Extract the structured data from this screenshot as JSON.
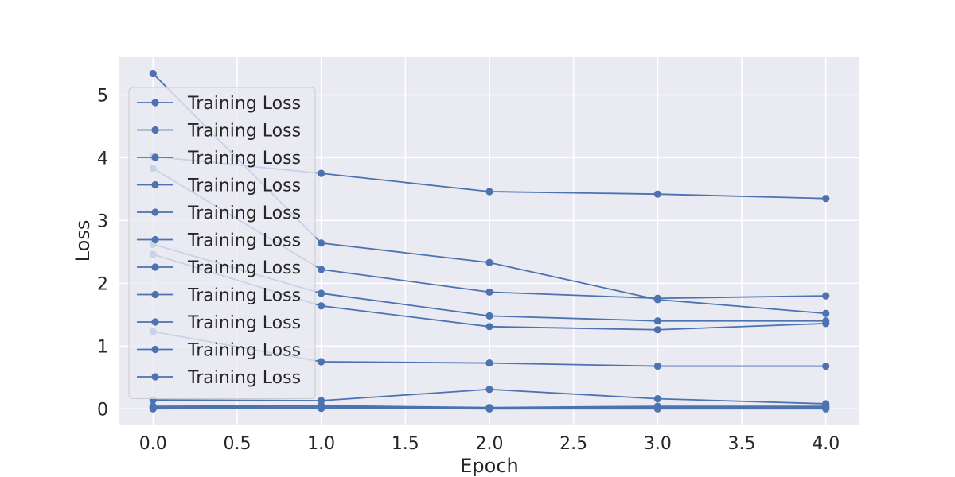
{
  "chart_data": {
    "type": "line",
    "title": "",
    "xlabel": "Epoch",
    "ylabel": "Loss",
    "xlim": [
      -0.2,
      4.2
    ],
    "ylim": [
      -0.25,
      5.6
    ],
    "xticks": [
      "0.0",
      "0.5",
      "1.0",
      "1.5",
      "2.0",
      "2.5",
      "3.0",
      "3.5",
      "4.0"
    ],
    "yticks": [
      "0",
      "1",
      "2",
      "3",
      "4",
      "5"
    ],
    "grid": true,
    "legend_position": "upper-left",
    "line_color": "#4c72b0",
    "x": [
      0,
      1,
      2,
      3,
      4
    ],
    "series": [
      {
        "name": "Training Loss",
        "values": [
          5.34,
          2.64,
          2.33,
          1.74,
          1.52
        ]
      },
      {
        "name": "Training Loss",
        "values": [
          4.02,
          3.75,
          3.46,
          3.42,
          3.35
        ]
      },
      {
        "name": "Training Loss",
        "values": [
          3.83,
          2.22,
          1.86,
          1.76,
          1.8
        ]
      },
      {
        "name": "Training Loss",
        "values": [
          2.62,
          1.84,
          1.48,
          1.4,
          1.4
        ]
      },
      {
        "name": "Training Loss",
        "values": [
          2.46,
          1.64,
          1.31,
          1.26,
          1.36
        ]
      },
      {
        "name": "Training Loss",
        "values": [
          1.23,
          0.75,
          0.73,
          0.68,
          0.68
        ]
      },
      {
        "name": "Training Loss",
        "values": [
          0.14,
          0.13,
          0.31,
          0.16,
          0.08
        ]
      },
      {
        "name": "Training Loss",
        "values": [
          0.04,
          0.05,
          0.02,
          0.04,
          0.04
        ]
      },
      {
        "name": "Training Loss",
        "values": [
          0.02,
          0.03,
          0.01,
          0.02,
          0.02
        ]
      },
      {
        "name": "Training Loss",
        "values": [
          0.01,
          0.01,
          0.0,
          0.01,
          0.01
        ]
      },
      {
        "name": "Training Loss",
        "values": [
          0.0,
          0.01,
          0.0,
          0.0,
          0.0
        ]
      }
    ]
  }
}
